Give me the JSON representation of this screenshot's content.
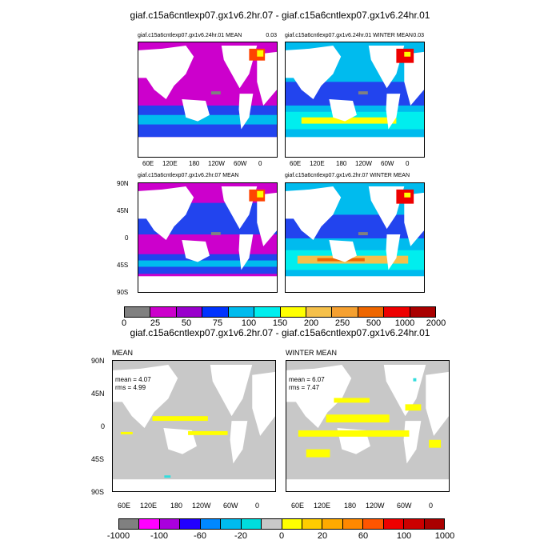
{
  "upper": {
    "title": "giaf.c15a6cntlexp07.gx1v6.2hr.07 - giaf.c15a6cntlexp07.gx1v6.24hr.01",
    "panels": [
      {
        "title": "giaf.c15a6cntlexp07.gx1v6.24hr.01 MEAN",
        "value": "0.03"
      },
      {
        "title": "giaf.c15a6cntlexp07.gx1v6.24hr.01 WINTER MEAN",
        "value": "0.03"
      },
      {
        "title": "giaf.c15a6cntlexp07.gx1v6.2hr.07 MEAN",
        "value": ""
      },
      {
        "title": "giaf.c15a6cntlexp07.gx1v6.2hr.07 WINTER MEAN",
        "value": ""
      }
    ],
    "colorbar": {
      "colors": [
        "#808080",
        "#cc00cc",
        "#9900cc",
        "#0033ff",
        "#00bbee",
        "#00eeee",
        "#ffff00",
        "#f5c04a",
        "#f5a030",
        "#ee6600",
        "#ee0000",
        "#aa0000"
      ],
      "labels": [
        "0",
        "25",
        "50",
        "75",
        "100",
        "150",
        "200",
        "250",
        "500",
        "1000",
        "2000"
      ]
    }
  },
  "lower": {
    "title": "giaf.c15a6cntlexp07.gx1v6.2hr.07 - giaf.c15a6cntlexp07.gx1v6.24hr.01",
    "panels": [
      {
        "title": "MEAN",
        "mean": "mean = 4.07",
        "rms": "rms = 4.99"
      },
      {
        "title": "WINTER MEAN",
        "mean": "mean = 6.07",
        "rms": "rms = 7.47"
      }
    ],
    "colorbar": {
      "colors": [
        "#808080",
        "#ff00ff",
        "#aa00dd",
        "#2200ff",
        "#0088ff",
        "#00bbee",
        "#00dddd",
        "#c8c8c8",
        "#ffff00",
        "#ffcc00",
        "#ffaa00",
        "#ff8800",
        "#ff5500",
        "#ee0000",
        "#cc0000",
        "#aa0000"
      ],
      "labels": [
        "-1000",
        "-100",
        "-60",
        "-20",
        "0",
        "20",
        "60",
        "100",
        "1000"
      ]
    }
  },
  "axes": {
    "lon_labels": [
      "60E",
      "120E",
      "180",
      "120W",
      "60W",
      "0"
    ],
    "lat_labels": [
      "90N",
      "45N",
      "0",
      "45S",
      "90S"
    ]
  },
  "map_colors": {
    "land": "#ffffff",
    "diff_background": "#c8c8c8",
    "diff_positive": "#ffff00",
    "diff_small": "#33dddd"
  }
}
